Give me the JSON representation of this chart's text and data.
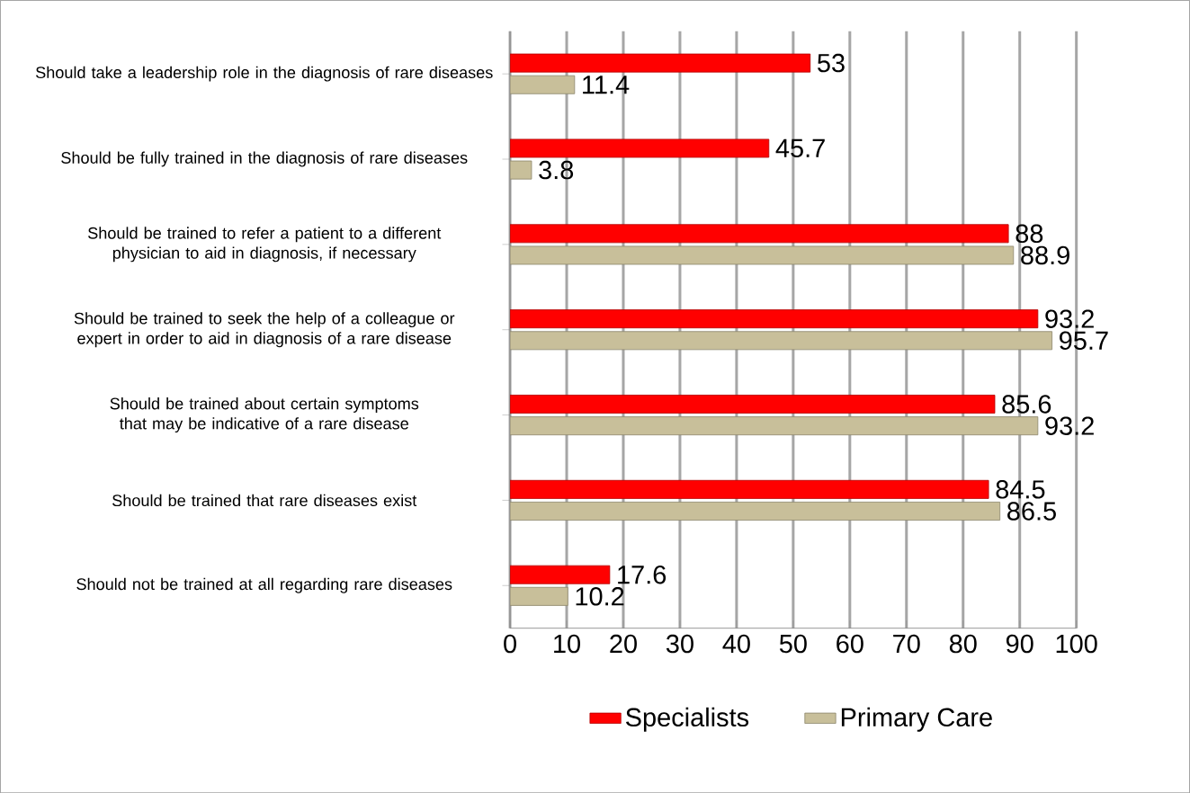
{
  "chart_data": {
    "type": "bar",
    "orientation": "horizontal",
    "categories": [
      "Should take a leadership role in the diagnosis of rare diseases",
      "Should be fully trained in the diagnosis of rare diseases",
      "Should be trained to refer a patient to a different physician to aid in diagnosis, if necessary",
      "Should be trained to seek the help of a colleague or expert in order to aid in diagnosis of a rare disease",
      "Should be trained about certain symptoms that may be indicative of a rare disease",
      "Should be trained that rare diseases exist",
      "Should not be trained at all regarding rare diseases"
    ],
    "series": [
      {
        "name": "Specialists",
        "color": "#ff0000",
        "values": [
          53,
          45.7,
          88,
          93.2,
          85.6,
          84.5,
          17.6
        ]
      },
      {
        "name": "Primary Care",
        "color": "#c8bf9a",
        "values": [
          11.4,
          3.8,
          88.9,
          95.7,
          93.2,
          86.5,
          10.2
        ]
      }
    ],
    "xlim": [
      0,
      100
    ],
    "xticks": [
      0,
      10,
      20,
      30,
      40,
      50,
      60,
      70,
      80,
      90,
      100
    ],
    "grid": "x",
    "legend": "bottom",
    "data_labels": true
  }
}
